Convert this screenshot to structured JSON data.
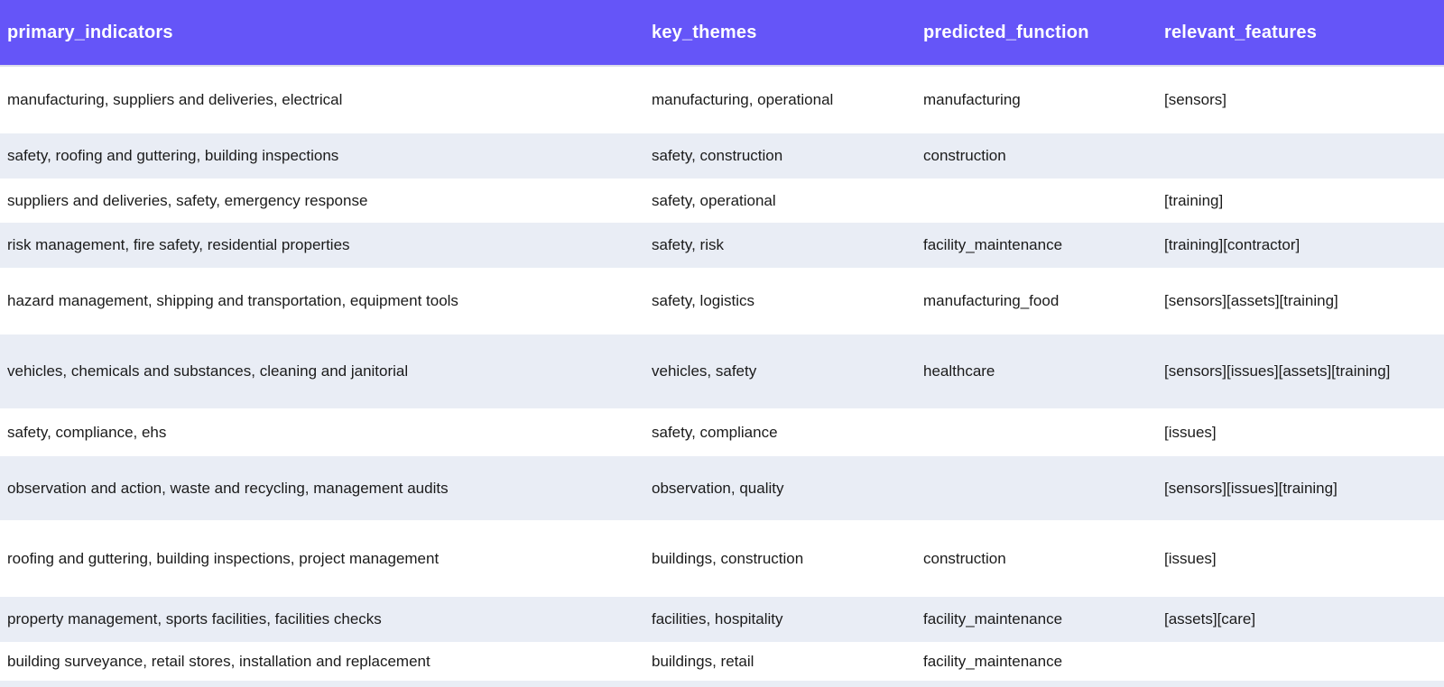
{
  "accent_colors": {
    "header_background": "#6555F8",
    "header_text": "#FFFFFF",
    "alt_row_background": "#E9EDF5",
    "body_text": "#1B1B1B"
  },
  "table": {
    "columns": [
      "primary_indicators",
      "key_themes",
      "predicted_function",
      "relevant_features"
    ],
    "rows": [
      {
        "cells": [
          "manufacturing, suppliers and deliveries, electrical",
          "manufacturing, operational",
          "manufacturing",
          "[sensors]"
        ]
      },
      {
        "cells": [
          "safety, roofing and guttering, building inspections",
          "safety, construction",
          "construction",
          ""
        ]
      },
      {
        "cells": [
          "suppliers and deliveries, safety, emergency response",
          "safety, operational",
          "",
          "[training]"
        ]
      },
      {
        "cells": [
          "risk management, fire safety, residential properties",
          "safety, risk",
          "facility_maintenance",
          "[training][contractor]"
        ]
      },
      {
        "cells": [
          "hazard management, shipping and transportation, equipment tools",
          "safety, logistics",
          "manufacturing_food",
          "[sensors][assets][training]"
        ]
      },
      {
        "cells": [
          "vehicles, chemicals and substances, cleaning and janitorial",
          "vehicles, safety",
          "healthcare",
          "[sensors][issues][assets][training]"
        ]
      },
      {
        "cells": [
          "safety, compliance, ehs",
          "safety, compliance",
          "",
          "[issues]"
        ]
      },
      {
        "cells": [
          "observation and action, waste and recycling, management audits",
          "observation, quality",
          "",
          "[sensors][issues][training]"
        ]
      },
      {
        "cells": [
          "roofing and guttering, building inspections, project management",
          "buildings, construction",
          "construction",
          "[issues]"
        ]
      },
      {
        "cells": [
          "property management, sports facilities, facilities checks",
          "facilities, hospitality",
          "facility_maintenance",
          "[assets][care]"
        ]
      },
      {
        "cells": [
          "building surveyance, retail stores, installation and replacement",
          "buildings, retail",
          "facility_maintenance",
          ""
        ]
      },
      {
        "cells": [
          "",
          "",
          "",
          ""
        ]
      }
    ]
  },
  "chart_data": {
    "type": "table",
    "title": "",
    "columns": [
      "primary_indicators",
      "key_themes",
      "predicted_function",
      "relevant_features"
    ],
    "rows": [
      [
        "manufacturing, suppliers and deliveries, electrical",
        "manufacturing, operational",
        "manufacturing",
        "[sensors]"
      ],
      [
        "safety, roofing and guttering, building inspections",
        "safety, construction",
        "construction",
        ""
      ],
      [
        "suppliers and deliveries, safety, emergency response",
        "safety, operational",
        "",
        "[training]"
      ],
      [
        "risk management, fire safety, residential properties",
        "safety, risk",
        "facility_maintenance",
        "[training][contractor]"
      ],
      [
        "hazard management, shipping and transportation, equipment tools",
        "safety, logistics",
        "manufacturing_food",
        "[sensors][assets][training]"
      ],
      [
        "vehicles, chemicals and substances, cleaning and janitorial",
        "vehicles, safety",
        "healthcare",
        "[sensors][issues][assets][training]"
      ],
      [
        "safety, compliance, ehs",
        "safety, compliance",
        "",
        "[issues]"
      ],
      [
        "observation and action, waste and recycling, management audits",
        "observation, quality",
        "",
        "[sensors][issues][training]"
      ],
      [
        "roofing and guttering, building inspections, project management",
        "buildings, construction",
        "construction",
        "[issues]"
      ],
      [
        "property management, sports facilities, facilities checks",
        "facilities, hospitality",
        "facility_maintenance",
        "[assets][care]"
      ],
      [
        "building surveyance, retail stores, installation and replacement",
        "buildings, retail",
        "facility_maintenance",
        ""
      ],
      [
        "",
        "",
        "",
        ""
      ]
    ],
    "layout_hints": {
      "header_style": "solid purple band, white bold labels",
      "row_striping": "odd rows white, even rows pale blue-gray",
      "grid": "off",
      "last_row_clipped": true
    }
  }
}
